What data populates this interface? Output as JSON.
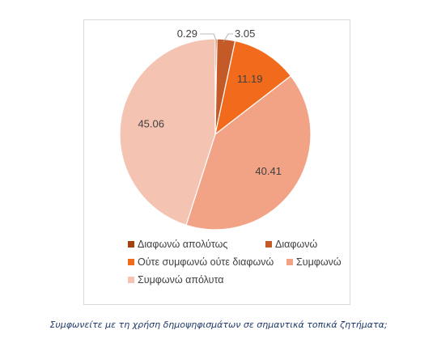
{
  "chart_data": {
    "type": "pie",
    "title": "",
    "categories": [
      "Διαφωνώ απολύτως",
      "Διαφωνώ",
      "Ούτε συμφωνώ ούτε διαφωνώ",
      "Συμφωνώ",
      "Συμφωνώ απόλυτα"
    ],
    "values": [
      0.29,
      3.05,
      11.19,
      40.41,
      45.06
    ],
    "data_labels": [
      "0.29",
      "3.05",
      "11.19",
      "40.41",
      "45.06"
    ],
    "colors": [
      "#a0430f",
      "#c55a29",
      "#f26a1b",
      "#f2a285",
      "#f4c3b1"
    ],
    "legend_position": "bottom"
  },
  "caption": "Συμφωνείτε με τη χρήση δημοψηφισμάτων σε σημαντικά τοπικά ζητήματα;"
}
